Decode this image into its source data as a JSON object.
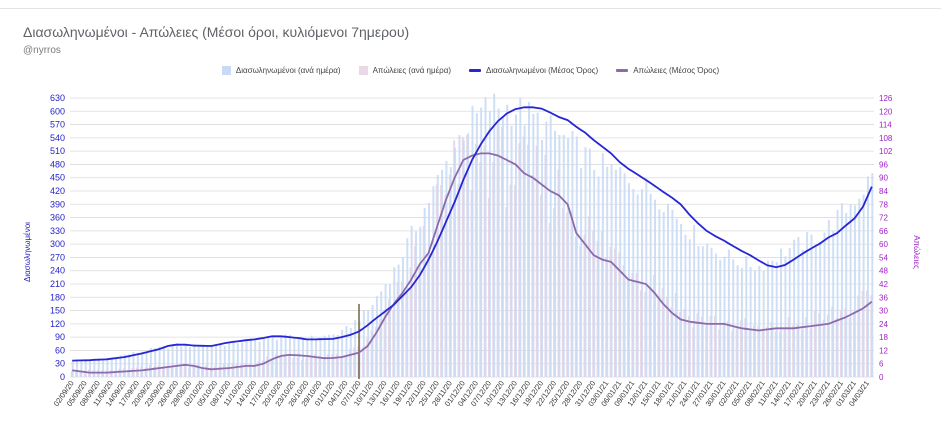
{
  "chart_data": {
    "type": "bar",
    "title": "Διασωληνωμένοι - Απώλειες (Μέσοι όροι, κυλιόμενοι 7ημερου)",
    "subtitle": "@nyrros",
    "ylabel": "Διασωληνωμένοι",
    "y2label": "Απώλειες",
    "ylim": [
      0,
      630
    ],
    "y2lim": [
      0,
      126
    ],
    "yticks": [
      0,
      30,
      60,
      90,
      120,
      150,
      180,
      210,
      240,
      270,
      300,
      330,
      360,
      390,
      420,
      450,
      480,
      510,
      540,
      570,
      600,
      630
    ],
    "y2ticks": [
      0,
      6,
      12,
      18,
      24,
      30,
      36,
      42,
      48,
      54,
      60,
      66,
      72,
      78,
      84,
      90,
      96,
      102,
      108,
      114,
      120,
      126
    ],
    "grid": true,
    "legend_position": "top",
    "start_date": "2020-09-02",
    "num_days": 185,
    "x_tick_labels": [
      "02/09/20",
      "05/09/20",
      "08/09/20",
      "11/09/20",
      "14/09/20",
      "17/09/20",
      "20/09/20",
      "23/09/20",
      "26/09/20",
      "29/09/20",
      "02/10/20",
      "05/10/20",
      "08/10/20",
      "11/10/20",
      "14/10/20",
      "17/10/20",
      "20/10/20",
      "23/10/20",
      "26/10/20",
      "29/10/20",
      "01/11/20",
      "04/11/20",
      "07/11/20",
      "10/11/20",
      "13/11/20",
      "16/11/20",
      "19/11/20",
      "22/11/20",
      "25/11/20",
      "28/11/20",
      "01/12/20",
      "04/12/20",
      "07/12/20",
      "10/12/20",
      "13/12/20",
      "16/12/20",
      "19/12/20",
      "22/12/20",
      "25/12/20",
      "28/12/20",
      "31/12/20",
      "03/01/21",
      "06/01/21",
      "09/01/21",
      "12/01/21",
      "15/01/21",
      "18/01/21",
      "21/01/21",
      "24/01/21",
      "27/01/21",
      "30/01/21",
      "02/02/21",
      "05/02/21",
      "08/02/21",
      "11/02/21",
      "14/02/21",
      "17/02/21",
      "20/02/21",
      "23/02/21",
      "26/02/21",
      "01/03/21",
      "04/03/21"
    ],
    "marker_date": "07/11/20",
    "series": [
      {
        "name": "Διασωληνωμένοι (ανά ημέρα)",
        "kind": "bar",
        "axis": "left",
        "color": "#c9daf5",
        "keypoints": [
          [
            0,
            38
          ],
          [
            8,
            42
          ],
          [
            16,
            58
          ],
          [
            24,
            72
          ],
          [
            32,
            70
          ],
          [
            40,
            82
          ],
          [
            48,
            90
          ],
          [
            56,
            88
          ],
          [
            62,
            100
          ],
          [
            68,
            150
          ],
          [
            74,
            240
          ],
          [
            80,
            360
          ],
          [
            86,
            480
          ],
          [
            90,
            560
          ],
          [
            96,
            612
          ],
          [
            102,
            605
          ],
          [
            108,
            570
          ],
          [
            114,
            530
          ],
          [
            120,
            480
          ],
          [
            128,
            450
          ],
          [
            136,
            400
          ],
          [
            142,
            330
          ],
          [
            148,
            285
          ],
          [
            154,
            258
          ],
          [
            158,
            250
          ],
          [
            164,
            285
          ],
          [
            172,
            320
          ],
          [
            178,
            380
          ],
          [
            184,
            450
          ]
        ]
      },
      {
        "name": "Απώλειες (ανά ημέρα)",
        "kind": "bar",
        "axis": "right",
        "color": "#ead8e6",
        "keypoints": [
          [
            0,
            3
          ],
          [
            10,
            3
          ],
          [
            20,
            5
          ],
          [
            30,
            5
          ],
          [
            40,
            6
          ],
          [
            48,
            9
          ],
          [
            56,
            9
          ],
          [
            62,
            9
          ],
          [
            68,
            16
          ],
          [
            74,
            33
          ],
          [
            80,
            55
          ],
          [
            86,
            82
          ],
          [
            90,
            98
          ],
          [
            96,
            100
          ],
          [
            102,
            92
          ],
          [
            108,
            88
          ],
          [
            114,
            80
          ],
          [
            120,
            62
          ],
          [
            128,
            52
          ],
          [
            136,
            40
          ],
          [
            142,
            28
          ],
          [
            148,
            25
          ],
          [
            154,
            23
          ],
          [
            160,
            21
          ],
          [
            166,
            24
          ],
          [
            172,
            26
          ],
          [
            178,
            30
          ],
          [
            184,
            34
          ]
        ]
      },
      {
        "name": "Διασωληνωμένοι (Μέσος Όρος)",
        "kind": "line",
        "axis": "left",
        "color": "#2626d4",
        "keypoints": [
          [
            0,
            37
          ],
          [
            4,
            38
          ],
          [
            8,
            40
          ],
          [
            12,
            45
          ],
          [
            16,
            53
          ],
          [
            20,
            63
          ],
          [
            22,
            70
          ],
          [
            24,
            73
          ],
          [
            26,
            73
          ],
          [
            28,
            71
          ],
          [
            32,
            70
          ],
          [
            34,
            74
          ],
          [
            36,
            78
          ],
          [
            40,
            83
          ],
          [
            42,
            85
          ],
          [
            44,
            88
          ],
          [
            46,
            92
          ],
          [
            48,
            92
          ],
          [
            50,
            90
          ],
          [
            52,
            88
          ],
          [
            54,
            85
          ],
          [
            56,
            85
          ],
          [
            60,
            86
          ],
          [
            62,
            90
          ],
          [
            64,
            95
          ],
          [
            66,
            103
          ],
          [
            68,
            117
          ],
          [
            70,
            133
          ],
          [
            72,
            148
          ],
          [
            74,
            163
          ],
          [
            76,
            183
          ],
          [
            78,
            203
          ],
          [
            80,
            230
          ],
          [
            82,
            265
          ],
          [
            84,
            305
          ],
          [
            86,
            350
          ],
          [
            88,
            395
          ],
          [
            90,
            445
          ],
          [
            92,
            490
          ],
          [
            94,
            525
          ],
          [
            96,
            555
          ],
          [
            98,
            578
          ],
          [
            100,
            595
          ],
          [
            102,
            605
          ],
          [
            104,
            609
          ],
          [
            106,
            609
          ],
          [
            108,
            606
          ],
          [
            110,
            597
          ],
          [
            112,
            587
          ],
          [
            114,
            580
          ],
          [
            116,
            565
          ],
          [
            118,
            552
          ],
          [
            120,
            535
          ],
          [
            124,
            505
          ],
          [
            126,
            485
          ],
          [
            128,
            470
          ],
          [
            130,
            458
          ],
          [
            132,
            445
          ],
          [
            134,
            432
          ],
          [
            136,
            418
          ],
          [
            138,
            405
          ],
          [
            140,
            390
          ],
          [
            142,
            367
          ],
          [
            144,
            347
          ],
          [
            146,
            330
          ],
          [
            148,
            318
          ],
          [
            150,
            308
          ],
          [
            152,
            296
          ],
          [
            154,
            285
          ],
          [
            156,
            275
          ],
          [
            158,
            263
          ],
          [
            160,
            252
          ],
          [
            162,
            248
          ],
          [
            164,
            253
          ],
          [
            166,
            265
          ],
          [
            168,
            278
          ],
          [
            170,
            290
          ],
          [
            172,
            301
          ],
          [
            174,
            315
          ],
          [
            176,
            325
          ],
          [
            178,
            342
          ],
          [
            180,
            358
          ],
          [
            182,
            385
          ],
          [
            184,
            430
          ]
        ]
      },
      {
        "name": "Απώλειες (Μέσος Όρος)",
        "kind": "line",
        "axis": "right",
        "color": "#8c6aac",
        "keypoints": [
          [
            0,
            3
          ],
          [
            4,
            2
          ],
          [
            8,
            2
          ],
          [
            12,
            2.5
          ],
          [
            16,
            3
          ],
          [
            20,
            4
          ],
          [
            24,
            5
          ],
          [
            26,
            5.5
          ],
          [
            28,
            5
          ],
          [
            30,
            4
          ],
          [
            32,
            3.5
          ],
          [
            36,
            4
          ],
          [
            40,
            5
          ],
          [
            42,
            5
          ],
          [
            44,
            6
          ],
          [
            46,
            8
          ],
          [
            48,
            9.5
          ],
          [
            50,
            10
          ],
          [
            52,
            9.8
          ],
          [
            54,
            9.5
          ],
          [
            56,
            9
          ],
          [
            58,
            8.5
          ],
          [
            60,
            8.6
          ],
          [
            62,
            9
          ],
          [
            64,
            10
          ],
          [
            66,
            11
          ],
          [
            68,
            14
          ],
          [
            70,
            20
          ],
          [
            72,
            27
          ],
          [
            74,
            33
          ],
          [
            76,
            38
          ],
          [
            78,
            44
          ],
          [
            80,
            51
          ],
          [
            82,
            56
          ],
          [
            84,
            68
          ],
          [
            86,
            80
          ],
          [
            88,
            90
          ],
          [
            90,
            98
          ],
          [
            92,
            100
          ],
          [
            94,
            101
          ],
          [
            96,
            101
          ],
          [
            98,
            100
          ],
          [
            100,
            98
          ],
          [
            102,
            96
          ],
          [
            104,
            92
          ],
          [
            106,
            90
          ],
          [
            108,
            87
          ],
          [
            110,
            84
          ],
          [
            112,
            82
          ],
          [
            114,
            78
          ],
          [
            116,
            65
          ],
          [
            118,
            60
          ],
          [
            120,
            55
          ],
          [
            122,
            53
          ],
          [
            124,
            52
          ],
          [
            126,
            48
          ],
          [
            128,
            44
          ],
          [
            130,
            43
          ],
          [
            132,
            42
          ],
          [
            134,
            38
          ],
          [
            136,
            33
          ],
          [
            138,
            29
          ],
          [
            140,
            26
          ],
          [
            142,
            25
          ],
          [
            146,
            24
          ],
          [
            150,
            24
          ],
          [
            154,
            22
          ],
          [
            158,
            21
          ],
          [
            162,
            22
          ],
          [
            166,
            22
          ],
          [
            170,
            23
          ],
          [
            174,
            24
          ],
          [
            178,
            27
          ],
          [
            180,
            29
          ],
          [
            182,
            31
          ],
          [
            184,
            34
          ]
        ]
      }
    ]
  }
}
